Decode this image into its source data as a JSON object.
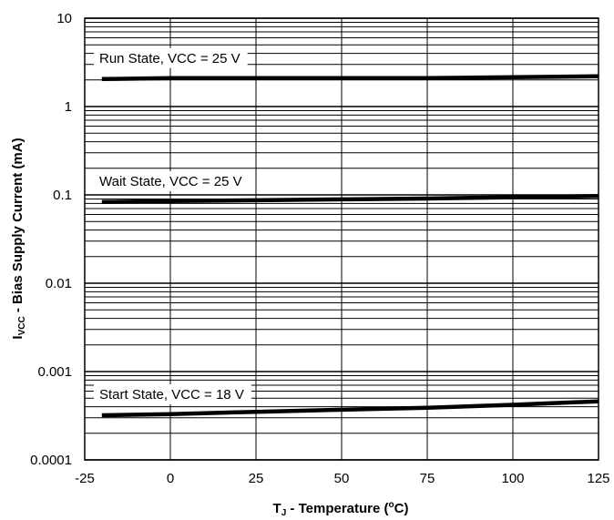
{
  "chart_data": {
    "type": "line",
    "title": "",
    "xlabel": {
      "main": "T",
      "sub": "J",
      "rest": " - Temperature (",
      "sup": "o",
      "unit": "C)"
    },
    "ylabel": {
      "main": "I",
      "sub": "VCC",
      "rest": " - Bias Supply Current (mA)"
    },
    "x_scale": "linear",
    "y_scale": "log",
    "xlim": [
      -25,
      125
    ],
    "ylim": [
      0.0001,
      10
    ],
    "x_ticks": [
      "-25",
      "0",
      "25",
      "50",
      "75",
      "100",
      "125"
    ],
    "x_tick_values": [
      -25,
      0,
      25,
      50,
      75,
      100,
      125
    ],
    "y_ticks": [
      "0.0001",
      "0.001",
      "0.01",
      "0.1",
      "1",
      "10"
    ],
    "y_tick_values": [
      0.0001,
      0.001,
      0.01,
      0.1,
      1,
      10
    ],
    "grid": true,
    "series": [
      {
        "name": "Run State, VCC = 25 V",
        "x": [
          -20,
          0,
          25,
          50,
          75,
          100,
          125
        ],
        "y": [
          2.05,
          2.1,
          2.1,
          2.1,
          2.1,
          2.15,
          2.2
        ]
      },
      {
        "name": "Wait State, VCC = 25 V",
        "x": [
          -20,
          0,
          25,
          50,
          75,
          100,
          125
        ],
        "y": [
          0.083,
          0.085,
          0.087,
          0.089,
          0.091,
          0.094,
          0.097
        ]
      },
      {
        "name": "Start State, VCC = 18 V",
        "x": [
          -20,
          0,
          25,
          50,
          75,
          100,
          125
        ],
        "y": [
          0.00032,
          0.00033,
          0.00035,
          0.00037,
          0.00039,
          0.00042,
          0.00046
        ]
      }
    ],
    "line_color": "#000000"
  }
}
